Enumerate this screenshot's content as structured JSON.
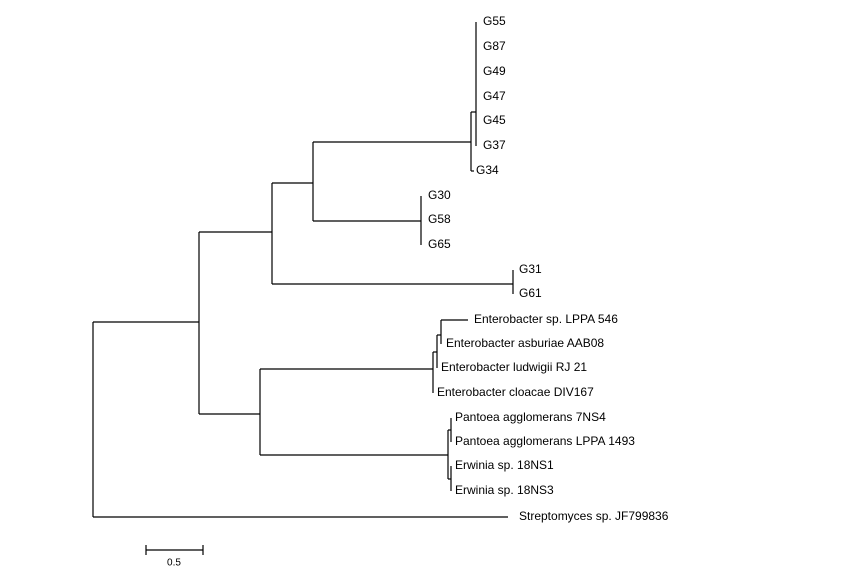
{
  "leaves": [
    "G55",
    "G87",
    "G49",
    "G47",
    "G45",
    "G37",
    "G34",
    "G30",
    "G58",
    "G65",
    "G31",
    "G61",
    "Enterobacter sp. LPPA 546",
    "Enterobacter asburiae AAB08",
    "Enterobacter ludwigii RJ 21",
    "Enterobacter cloacae DIV167",
    "Pantoea agglomerans 7NS4",
    "Pantoea agglomerans LPPA 1493",
    "Erwinia sp. 18NS1",
    "Erwinia sp. 18NS3",
    "Streptomyces sp. JF799836"
  ],
  "scale_bar": {
    "label": "0.5"
  }
}
